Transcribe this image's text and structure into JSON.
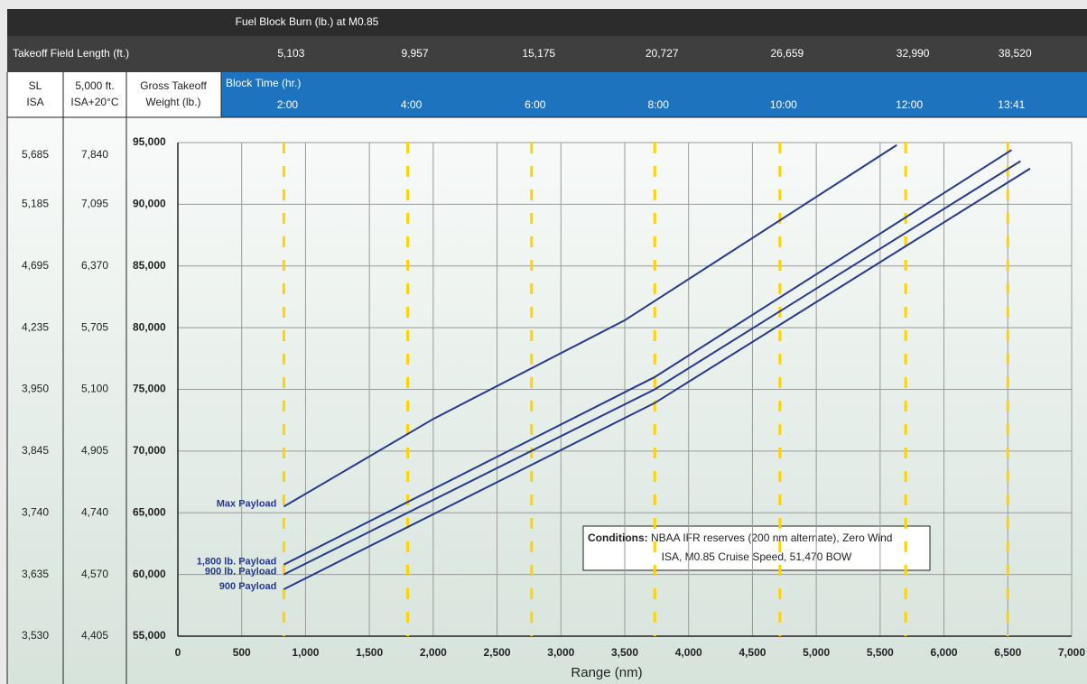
{
  "chart_data": {
    "type": "line",
    "header_title": "Fuel Block Burn (lb.) at M0.85",
    "field_length_label": "Takeoff Field Length (ft.)",
    "block_time_label": "Block Time (hr.)",
    "columns": {
      "x": [
        830,
        1800,
        2770,
        3735,
        4715,
        5700,
        6500
      ],
      "fuel_burn": [
        "5,103",
        "9,957",
        "15,175",
        "20,727",
        "26,659",
        "32,990",
        "38,520"
      ],
      "block_time": [
        "2:00",
        "4:00",
        "6:00",
        "8:00",
        "10:00",
        "12:00",
        "13:41"
      ],
      "color": "#ffd200"
    },
    "left_columns": [
      {
        "header": [
          "SL",
          "ISA"
        ],
        "values": [
          "3,530",
          "3,635",
          "3,740",
          "3,845",
          "3,950",
          "4,235",
          "4,695",
          "5,185",
          "5,685"
        ]
      },
      {
        "header": [
          "5,000 ft.",
          "ISA+20°C"
        ],
        "values": [
          "4,405",
          "4,570",
          "4,740",
          "4,905",
          "5,100",
          "5,705",
          "6,370",
          "7,095",
          "7,840"
        ]
      }
    ],
    "y_label": [
      "Gross Takeoff",
      "Weight (lb.)"
    ],
    "x_label": "Range (nm)",
    "xlim": [
      0,
      7000
    ],
    "xticks": [
      0,
      500,
      {
        "value": 1000,
        "label": "1,000"
      },
      {
        "value": 1500,
        "label": "1,500"
      },
      {
        "value": 2000,
        "label": "2,000"
      },
      {
        "value": 2500,
        "label": "2,500"
      },
      {
        "value": 3000,
        "label": "3,000"
      },
      {
        "value": 3500,
        "label": "3,500"
      },
      {
        "value": 4000,
        "label": "4,000"
      },
      {
        "value": 4500,
        "label": "4,500"
      },
      {
        "value": 5000,
        "label": "5,000"
      },
      {
        "value": 5500,
        "label": "5,500"
      },
      {
        "value": 6000,
        "label": "6,000"
      },
      {
        "value": 6500,
        "label": "6,500"
      },
      {
        "value": 7000,
        "label": "7,000"
      }
    ],
    "ylim": [
      55000,
      95000
    ],
    "yticks": [
      {
        "value": 55000,
        "label": "55,000"
      },
      {
        "value": 60000,
        "label": "60,000"
      },
      {
        "value": 65000,
        "label": "65,000"
      },
      {
        "value": 70000,
        "label": "70,000"
      },
      {
        "value": 75000,
        "label": "75,000"
      },
      {
        "value": 80000,
        "label": "80,000"
      },
      {
        "value": 85000,
        "label": "85,000"
      },
      {
        "value": 90000,
        "label": "90,000"
      },
      {
        "value": 95000,
        "label": "95,000"
      }
    ],
    "grid": true,
    "series": [
      {
        "name": "Max Payload",
        "color": "#263a8c",
        "x": [
          830,
          2000,
          3500,
          5630
        ],
        "values": [
          65500,
          72600,
          80600,
          94800
        ]
      },
      {
        "name": "1,800 lb. Payload",
        "color": "#263a8c",
        "x": [
          830,
          3735,
          6530
        ],
        "values": [
          60800,
          76000,
          94400
        ]
      },
      {
        "name": "900 lb. Payload",
        "color": "#263a8c",
        "x": [
          830,
          3735,
          6600
        ],
        "values": [
          60000,
          75000,
          93500
        ]
      },
      {
        "name": "900 Payload",
        "color": "#263a8c",
        "x": [
          830,
          3735,
          6675
        ],
        "values": [
          58800,
          73900,
          92900
        ]
      }
    ],
    "annotation": {
      "bold": "Conditions:",
      "line1": "NBAA IFR reserves (200 nm alternate), Zero Wind",
      "line2": "ISA, M0.85 Cruise Speed, 51,470 BOW"
    }
  }
}
